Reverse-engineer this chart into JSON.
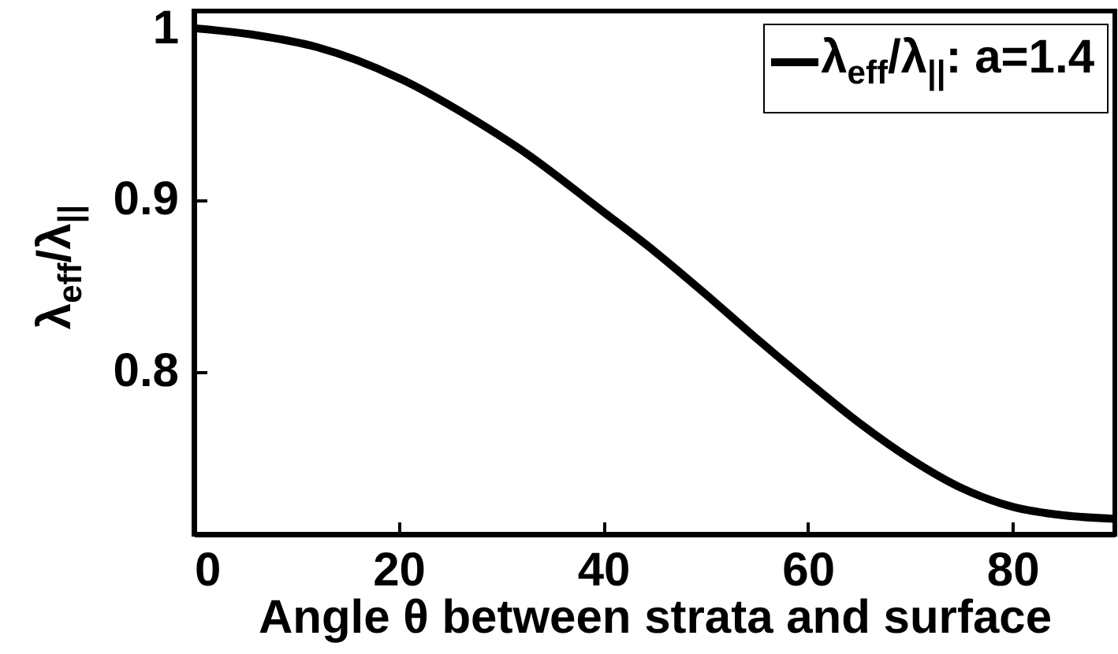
{
  "chart_data": {
    "type": "line",
    "xlabel": "Angle θ between strata and surface",
    "ylabel": "λ$_{eff}$/λ$_{||}$",
    "x": [
      0,
      6,
      12,
      20,
      27,
      32,
      40,
      45,
      50,
      55,
      60,
      65,
      70,
      75,
      80,
      85,
      90
    ],
    "series": [
      {
        "name": "λ$_{eff}$/λ$_{||}$: a=1.4",
        "color": "#000000",
        "values": [
          1.0,
          0.996,
          0.989,
          0.971,
          0.948,
          0.929,
          0.893,
          0.87,
          0.845,
          0.819,
          0.794,
          0.77,
          0.749,
          0.732,
          0.721,
          0.716,
          0.714
        ]
      }
    ],
    "xlim": [
      0,
      90
    ],
    "ylim": [
      0.705,
      1.01
    ],
    "xticks": [
      0,
      20,
      40,
      60,
      80
    ],
    "yticks": [
      {
        "value": 0.8,
        "label": "0.8"
      },
      {
        "value": 0.9,
        "label": "0.9"
      },
      {
        "value": 1.0,
        "label": "1"
      }
    ],
    "legend": "top right",
    "line_style": "solid",
    "marker": "none"
  }
}
